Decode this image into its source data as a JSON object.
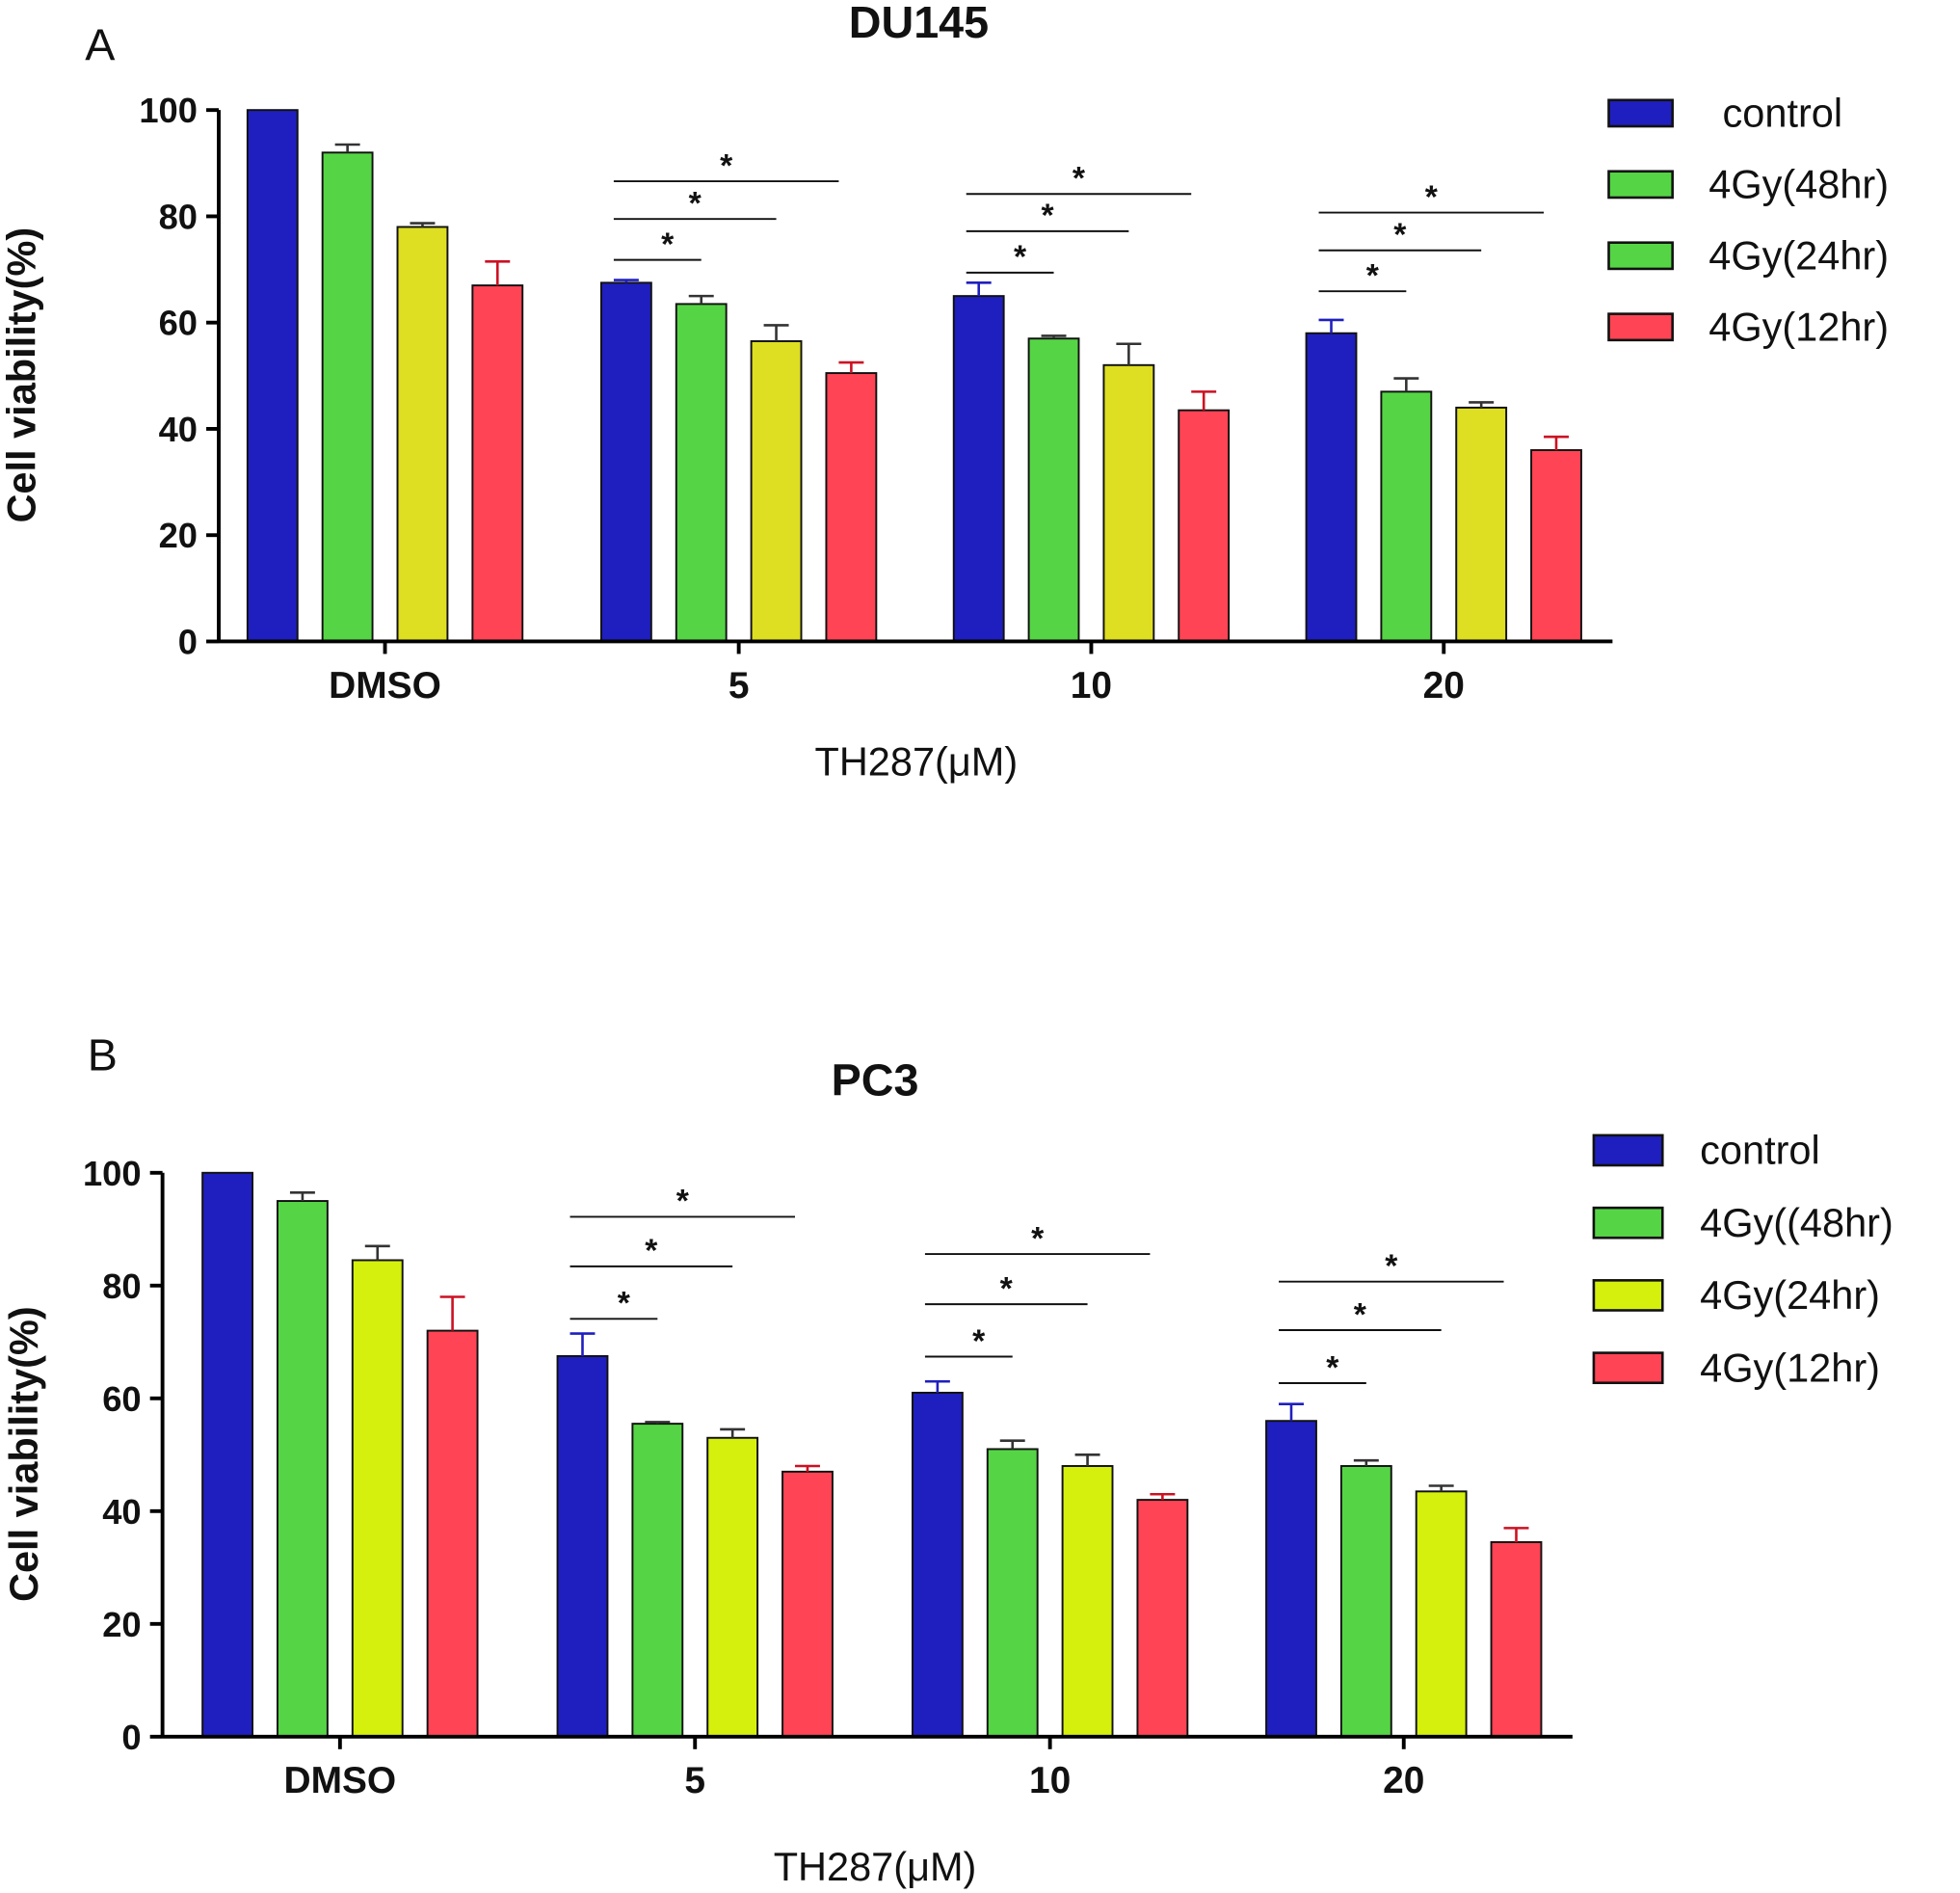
{
  "chart_data": [
    {
      "type": "bar",
      "panel_label": "A",
      "title": "DU145",
      "xlabel": "TH287(μM)",
      "ylabel": "Cell viability(%)",
      "ylim": [
        0,
        100
      ],
      "yticks": [
        "0",
        "20",
        "40",
        "60",
        "80",
        "100"
      ],
      "categories": [
        "DMSO",
        "5",
        "10",
        "20"
      ],
      "legend_position": "right",
      "series": [
        {
          "name": "control",
          "color": "#1f1fbf",
          "values": [
            100,
            67.5,
            65,
            58
          ],
          "errors": [
            0,
            0.5,
            2.5,
            2.5
          ]
        },
        {
          "name": "4Gy(48hr)",
          "color": "#55d545",
          "values": [
            92,
            63.5,
            57,
            47
          ],
          "errors": [
            1.5,
            1.5,
            0.5,
            2.5
          ]
        },
        {
          "name": "4Gy(24hr)",
          "color": "#55d545",
          "bar_color": "#dede22",
          "values": [
            78,
            56.5,
            52,
            44
          ],
          "errors": [
            0.7,
            3,
            4,
            1
          ]
        },
        {
          "name": "4Gy(12hr)",
          "color": "#ff4455",
          "values": [
            67,
            50.5,
            43.5,
            36
          ],
          "errors": [
            4.5,
            2,
            3.5,
            2.5
          ]
        }
      ],
      "significance": [
        {
          "category": "5",
          "pairs": [
            [
              0,
              1,
              71.8
            ],
            [
              0,
              2,
              79.5
            ],
            [
              0,
              3,
              86.6
            ]
          ],
          "label": "*"
        },
        {
          "category": "10",
          "pairs": [
            [
              0,
              1,
              69.4
            ],
            [
              0,
              2,
              77.2
            ],
            [
              0,
              3,
              84.2
            ]
          ],
          "label": "*"
        },
        {
          "category": "20",
          "pairs": [
            [
              0,
              1,
              65.9
            ],
            [
              0,
              2,
              73.6
            ],
            [
              0,
              3,
              80.7
            ]
          ],
          "label": "*"
        }
      ]
    },
    {
      "type": "bar",
      "panel_label": "B",
      "title": "PC3",
      "xlabel": "TH287(μM)",
      "ylabel": "Cell viability(%)",
      "ylim": [
        0,
        100
      ],
      "yticks": [
        "0",
        "20",
        "40",
        "60",
        "80",
        "100"
      ],
      "categories": [
        "DMSO",
        "5",
        "10",
        "20"
      ],
      "legend_position": "right",
      "series": [
        {
          "name": "control",
          "color": "#1f1fbf",
          "values": [
            100,
            67.5,
            61,
            56
          ],
          "errors": [
            0,
            4,
            2,
            3
          ]
        },
        {
          "name": "4Gy((48hr)",
          "color": "#55d545",
          "values": [
            95,
            55.5,
            51,
            48
          ],
          "errors": [
            1.5,
            0.3,
            1.5,
            1
          ]
        },
        {
          "name": "4Gy(24hr)",
          "color": "#d4f00c",
          "values": [
            84.5,
            53,
            48,
            43.5
          ],
          "errors": [
            2.5,
            1.5,
            2,
            1
          ]
        },
        {
          "name": "4Gy(12hr)",
          "color": "#ff4455",
          "values": [
            72,
            47,
            42,
            34.5
          ],
          "errors": [
            6,
            1,
            1,
            2.5
          ]
        }
      ],
      "significance": [
        {
          "category": "5",
          "pairs": [
            [
              0,
              1,
              74.1
            ],
            [
              0,
              2,
              83.4
            ],
            [
              0,
              3,
              92.2
            ]
          ],
          "label": "*"
        },
        {
          "category": "10",
          "pairs": [
            [
              0,
              1,
              67.4
            ],
            [
              0,
              2,
              76.7
            ],
            [
              0,
              3,
              85.6
            ]
          ],
          "label": "*"
        },
        {
          "category": "20",
          "pairs": [
            [
              0,
              1,
              62.7
            ],
            [
              0,
              2,
              72.1
            ],
            [
              0,
              3,
              80.7
            ]
          ],
          "label": "*"
        }
      ]
    }
  ]
}
